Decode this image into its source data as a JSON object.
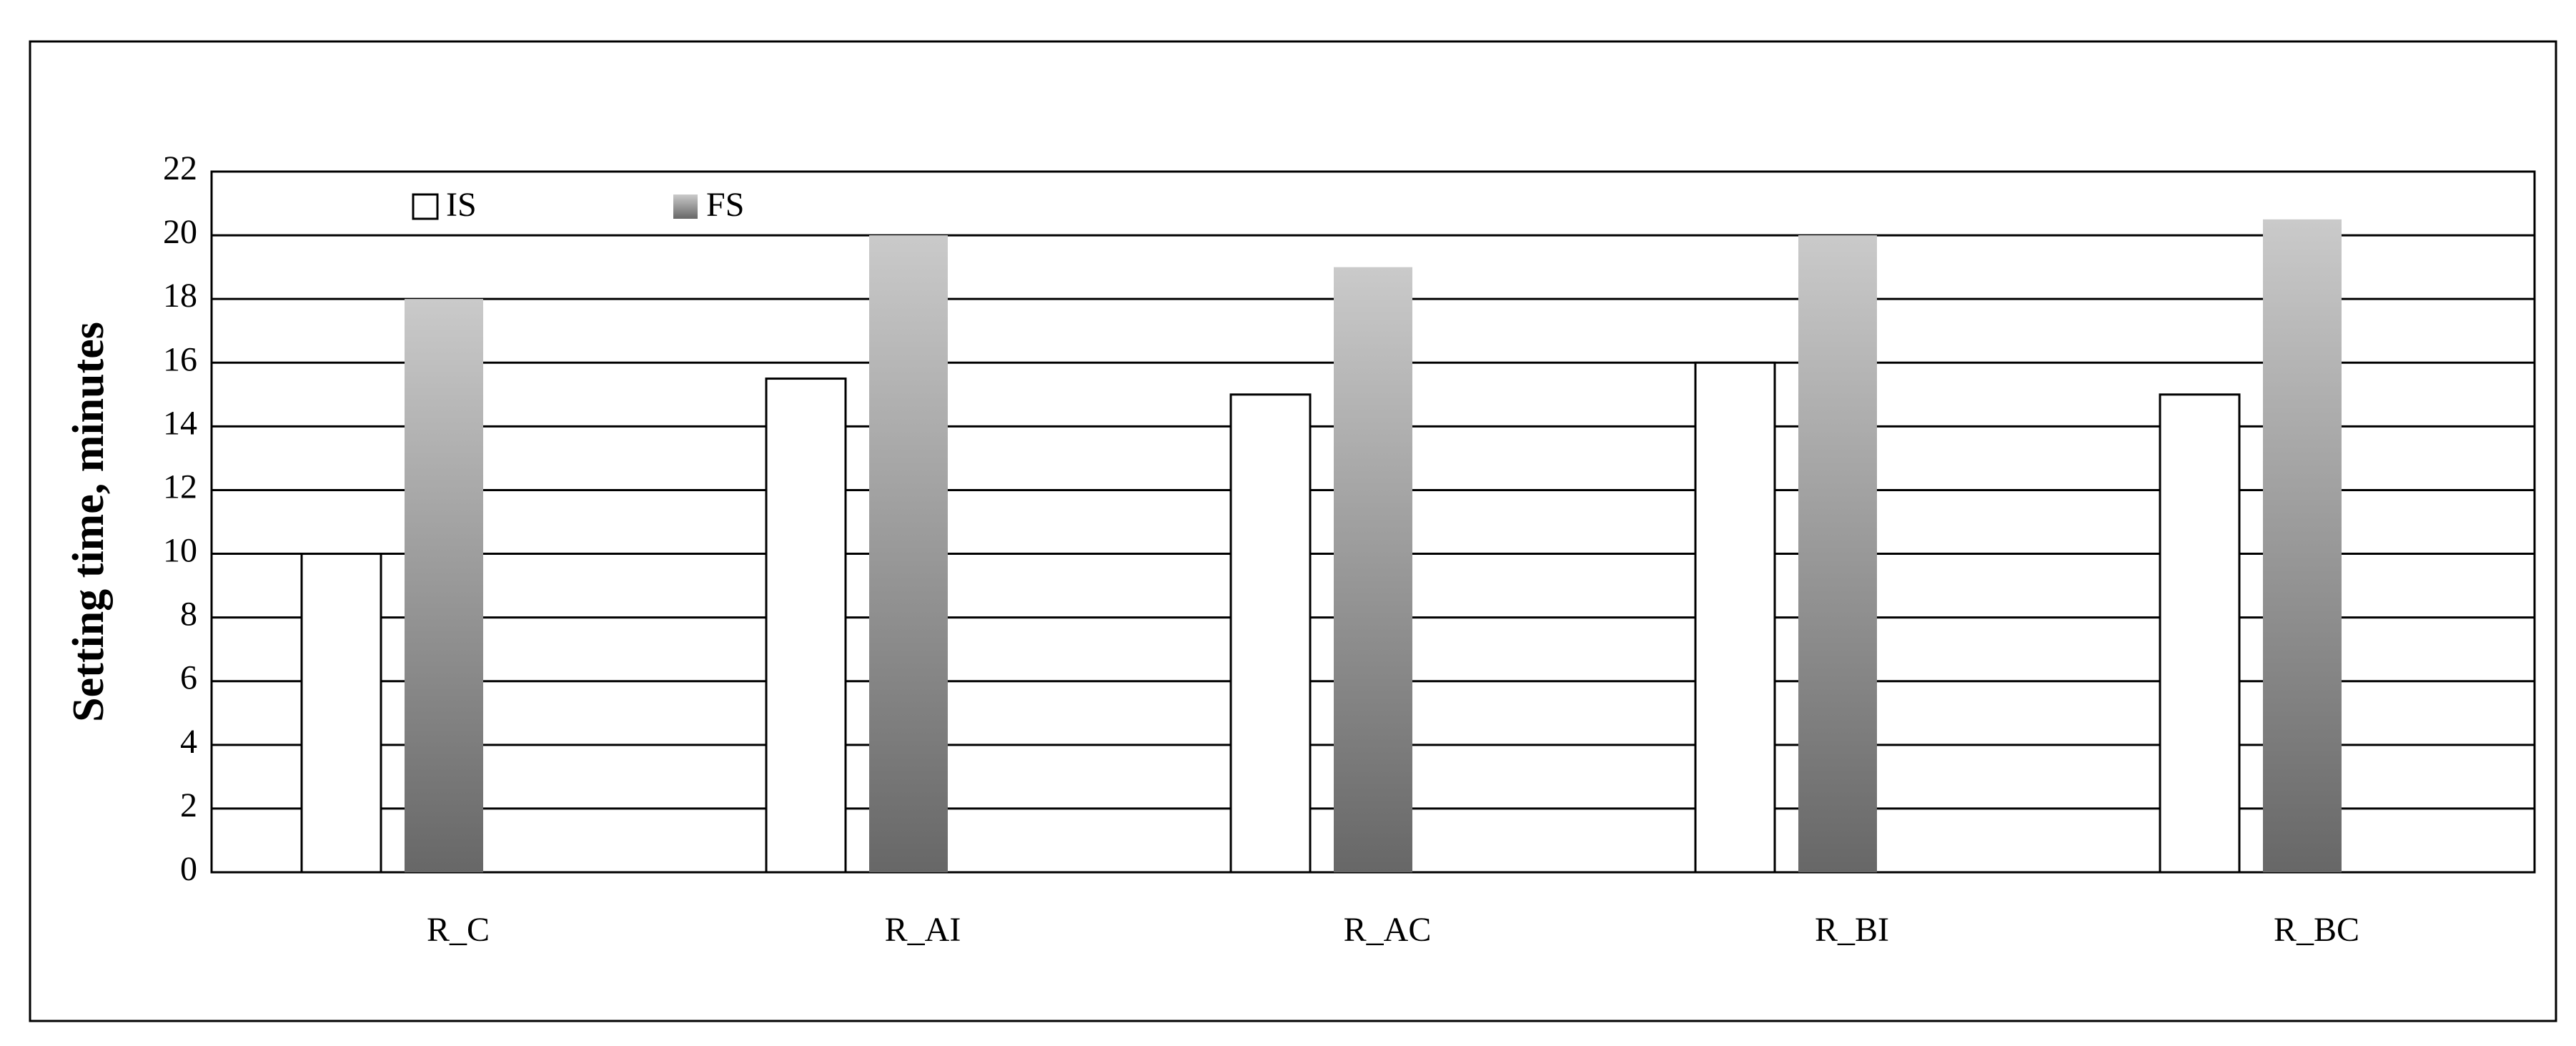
{
  "chart_data": {
    "type": "bar",
    "ylabel": "Setting time, minutes",
    "categories": [
      "R_C",
      "R_AI",
      "R_AC",
      "R_BI",
      "R_BC"
    ],
    "series": [
      {
        "name": "IS",
        "color": "#ffffff",
        "values": [
          10,
          15.5,
          15,
          16,
          15
        ]
      },
      {
        "name": "FS",
        "color": "#cacaca",
        "gradient_to": "#676767",
        "values": [
          18,
          20,
          19,
          20,
          20.5
        ]
      }
    ],
    "ylim": [
      0,
      22
    ],
    "yticks": [
      0,
      2,
      4,
      6,
      8,
      10,
      12,
      14,
      16,
      18,
      20,
      22
    ],
    "grid": true
  }
}
